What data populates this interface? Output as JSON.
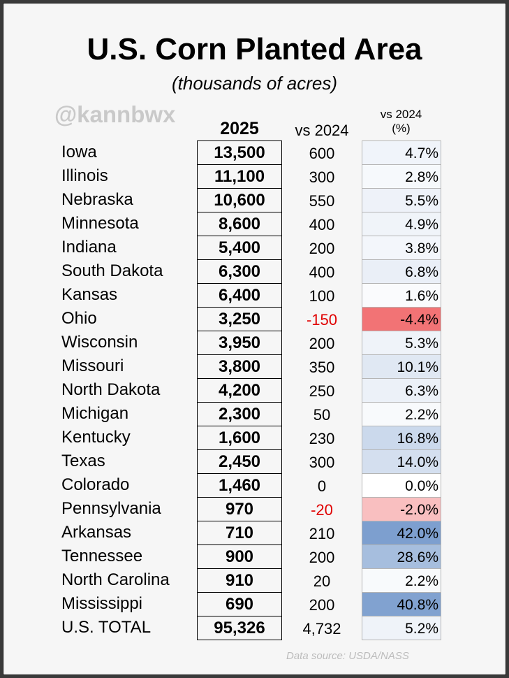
{
  "title": "U.S. Corn Planted Area",
  "subtitle": "(thousands of acres)",
  "watermark": "@kannbwx",
  "source": "Data source: USDA/NASS",
  "chart_data": {
    "type": "table",
    "columns": [
      "2025",
      "vs 2024",
      "vs 2024 (%)"
    ],
    "column_header_pct_line1": "vs 2024",
    "column_header_pct_line2": "(%)",
    "rows": [
      {
        "state": "Iowa",
        "acres_2025": "13,500",
        "vs_2024": "600",
        "pct": "4.7%",
        "pct_value": 4.7
      },
      {
        "state": "Illinois",
        "acres_2025": "11,100",
        "vs_2024": "300",
        "pct": "2.8%",
        "pct_value": 2.8
      },
      {
        "state": "Nebraska",
        "acres_2025": "10,600",
        "vs_2024": "550",
        "pct": "5.5%",
        "pct_value": 5.5
      },
      {
        "state": "Minnesota",
        "acres_2025": "8,600",
        "vs_2024": "400",
        "pct": "4.9%",
        "pct_value": 4.9
      },
      {
        "state": "Indiana",
        "acres_2025": "5,400",
        "vs_2024": "200",
        "pct": "3.8%",
        "pct_value": 3.8
      },
      {
        "state": "South Dakota",
        "acres_2025": "6,300",
        "vs_2024": "400",
        "pct": "6.8%",
        "pct_value": 6.8
      },
      {
        "state": "Kansas",
        "acres_2025": "6,400",
        "vs_2024": "100",
        "pct": "1.6%",
        "pct_value": 1.6
      },
      {
        "state": "Ohio",
        "acres_2025": "3,250",
        "vs_2024": "-150",
        "pct": "-4.4%",
        "pct_value": -4.4
      },
      {
        "state": "Wisconsin",
        "acres_2025": "3,950",
        "vs_2024": "200",
        "pct": "5.3%",
        "pct_value": 5.3
      },
      {
        "state": "Missouri",
        "acres_2025": "3,800",
        "vs_2024": "350",
        "pct": "10.1%",
        "pct_value": 10.1
      },
      {
        "state": "North Dakota",
        "acres_2025": "4,200",
        "vs_2024": "250",
        "pct": "6.3%",
        "pct_value": 6.3
      },
      {
        "state": "Michigan",
        "acres_2025": "2,300",
        "vs_2024": "50",
        "pct": "2.2%",
        "pct_value": 2.2
      },
      {
        "state": "Kentucky",
        "acres_2025": "1,600",
        "vs_2024": "230",
        "pct": "16.8%",
        "pct_value": 16.8
      },
      {
        "state": "Texas",
        "acres_2025": "2,450",
        "vs_2024": "300",
        "pct": "14.0%",
        "pct_value": 14.0
      },
      {
        "state": "Colorado",
        "acres_2025": "1,460",
        "vs_2024": "0",
        "pct": "0.0%",
        "pct_value": 0.0
      },
      {
        "state": "Pennsylvania",
        "acres_2025": "970",
        "vs_2024": "-20",
        "pct": "-2.0%",
        "pct_value": -2.0
      },
      {
        "state": "Arkansas",
        "acres_2025": "710",
        "vs_2024": "210",
        "pct": "42.0%",
        "pct_value": 42.0
      },
      {
        "state": "Tennessee",
        "acres_2025": "900",
        "vs_2024": "200",
        "pct": "28.6%",
        "pct_value": 28.6
      },
      {
        "state": "North Carolina",
        "acres_2025": "910",
        "vs_2024": "20",
        "pct": "2.2%",
        "pct_value": 2.2
      },
      {
        "state": "Mississippi",
        "acres_2025": "690",
        "vs_2024": "200",
        "pct": "40.8%",
        "pct_value": 40.8
      },
      {
        "state": "U.S. TOTAL",
        "acres_2025": "95,326",
        "vs_2024": "4,732",
        "pct": "5.2%",
        "pct_value": 5.2
      }
    ],
    "colors": {
      "positive_max": "#7d9fcf",
      "negative_max": "#f27375",
      "neutral": "#ffffff",
      "negative_text": "#e00000"
    }
  }
}
